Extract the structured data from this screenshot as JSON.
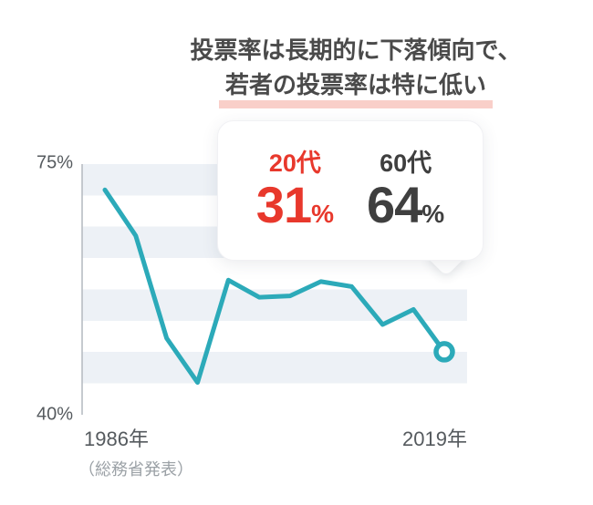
{
  "title": {
    "line1": "投票率は長期的に下落傾向で、",
    "line2": "若者の投票率は特に低い"
  },
  "callout": {
    "groups": [
      {
        "label": "20代",
        "value": "31",
        "unit": "%"
      },
      {
        "label": "60代",
        "value": "64",
        "unit": "%"
      }
    ]
  },
  "axes": {
    "y_top_label": "75%",
    "y_bottom_label": "40%",
    "x_left_label": "1986年",
    "x_right_label": "2019年"
  },
  "source_note": "（総務省発表）",
  "colors": {
    "line": "#2caab9",
    "marker_fill": "#ffffff",
    "band": "#edf1f6",
    "highlight_underline": "#f9cfc9",
    "accent_red": "#e8382c",
    "text_dark": "#3f3f3f"
  },
  "chart_data": {
    "type": "line",
    "title": "投票率は長期的に下落傾向で、若者の投票率は特に低い",
    "series_name": "投票率",
    "x": [
      1986,
      1989,
      1992,
      1995,
      1998,
      2001,
      2004,
      2007,
      2010,
      2013,
      2016,
      2019
    ],
    "values": [
      71.4,
      65.0,
      50.7,
      44.5,
      58.8,
      56.4,
      56.6,
      58.6,
      57.9,
      52.6,
      54.7,
      48.8
    ],
    "ylim": [
      40,
      75
    ],
    "y_tick_labels": [
      "75%",
      "40%"
    ],
    "x_tick_labels": [
      "1986年",
      "2019年"
    ],
    "grid": "horizontal-bands",
    "legend": "none",
    "last_point_highlighted": true,
    "annotations": [
      {
        "label": "20代",
        "value": "31%"
      },
      {
        "label": "60代",
        "value": "64%"
      }
    ],
    "source": "（総務省発表）"
  }
}
